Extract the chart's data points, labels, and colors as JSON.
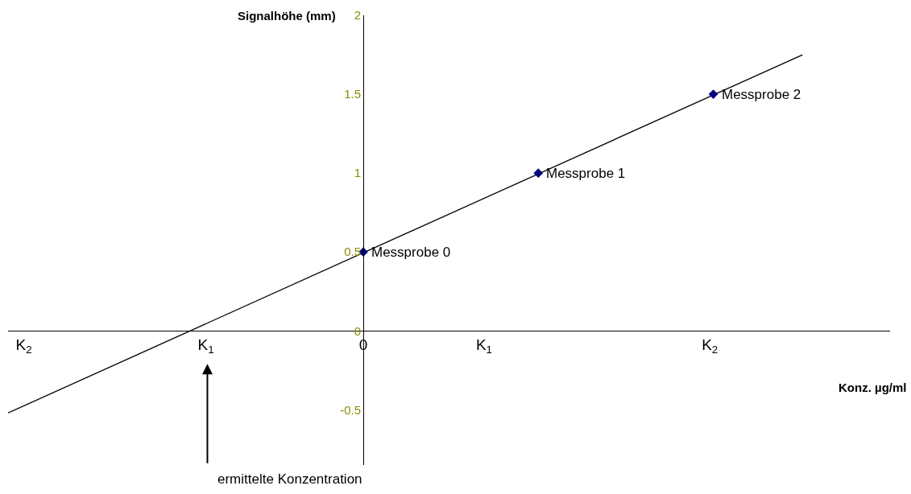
{
  "chart_data": {
    "type": "scatter",
    "xlabel": "Konz. µg/ml",
    "ylabel": "Signalhöhe (mm)",
    "xlim": [
      -2.03,
      3.01
    ],
    "ylim": [
      -0.85,
      2
    ],
    "xticks": [
      {
        "value": -1.94,
        "label": "K$_{2}$"
      },
      {
        "value": -0.9,
        "label": "K$_{1}$"
      },
      0,
      {
        "value": 0.69,
        "label": "K$_{1}$"
      },
      {
        "value": 1.98,
        "label": "K$_{2}$"
      }
    ],
    "yticks": [
      -0.5,
      0,
      0.5,
      1,
      1.5,
      2
    ],
    "series": [
      {
        "type": "line",
        "color": "#000000",
        "x": [
          -2.03,
          2.51
        ],
        "values": [
          -0.52,
          1.75
        ],
        "marker": "none",
        "line_style": "solid"
      },
      {
        "color": "#000080",
        "x": [
          0,
          1,
          2
        ],
        "values": [
          0.5,
          1,
          1.5
        ],
        "marker": "diamond"
      }
    ],
    "annotations": [
      {
        "text": "Messprobe 0",
        "x": 0,
        "y": 0.5
      },
      {
        "text": "Messprobe 1",
        "x": 1,
        "y": 1
      },
      {
        "text": "Messprobe 2",
        "x": 2,
        "y": 1.5
      },
      "ermittelte Konzentration"
    ]
  }
}
